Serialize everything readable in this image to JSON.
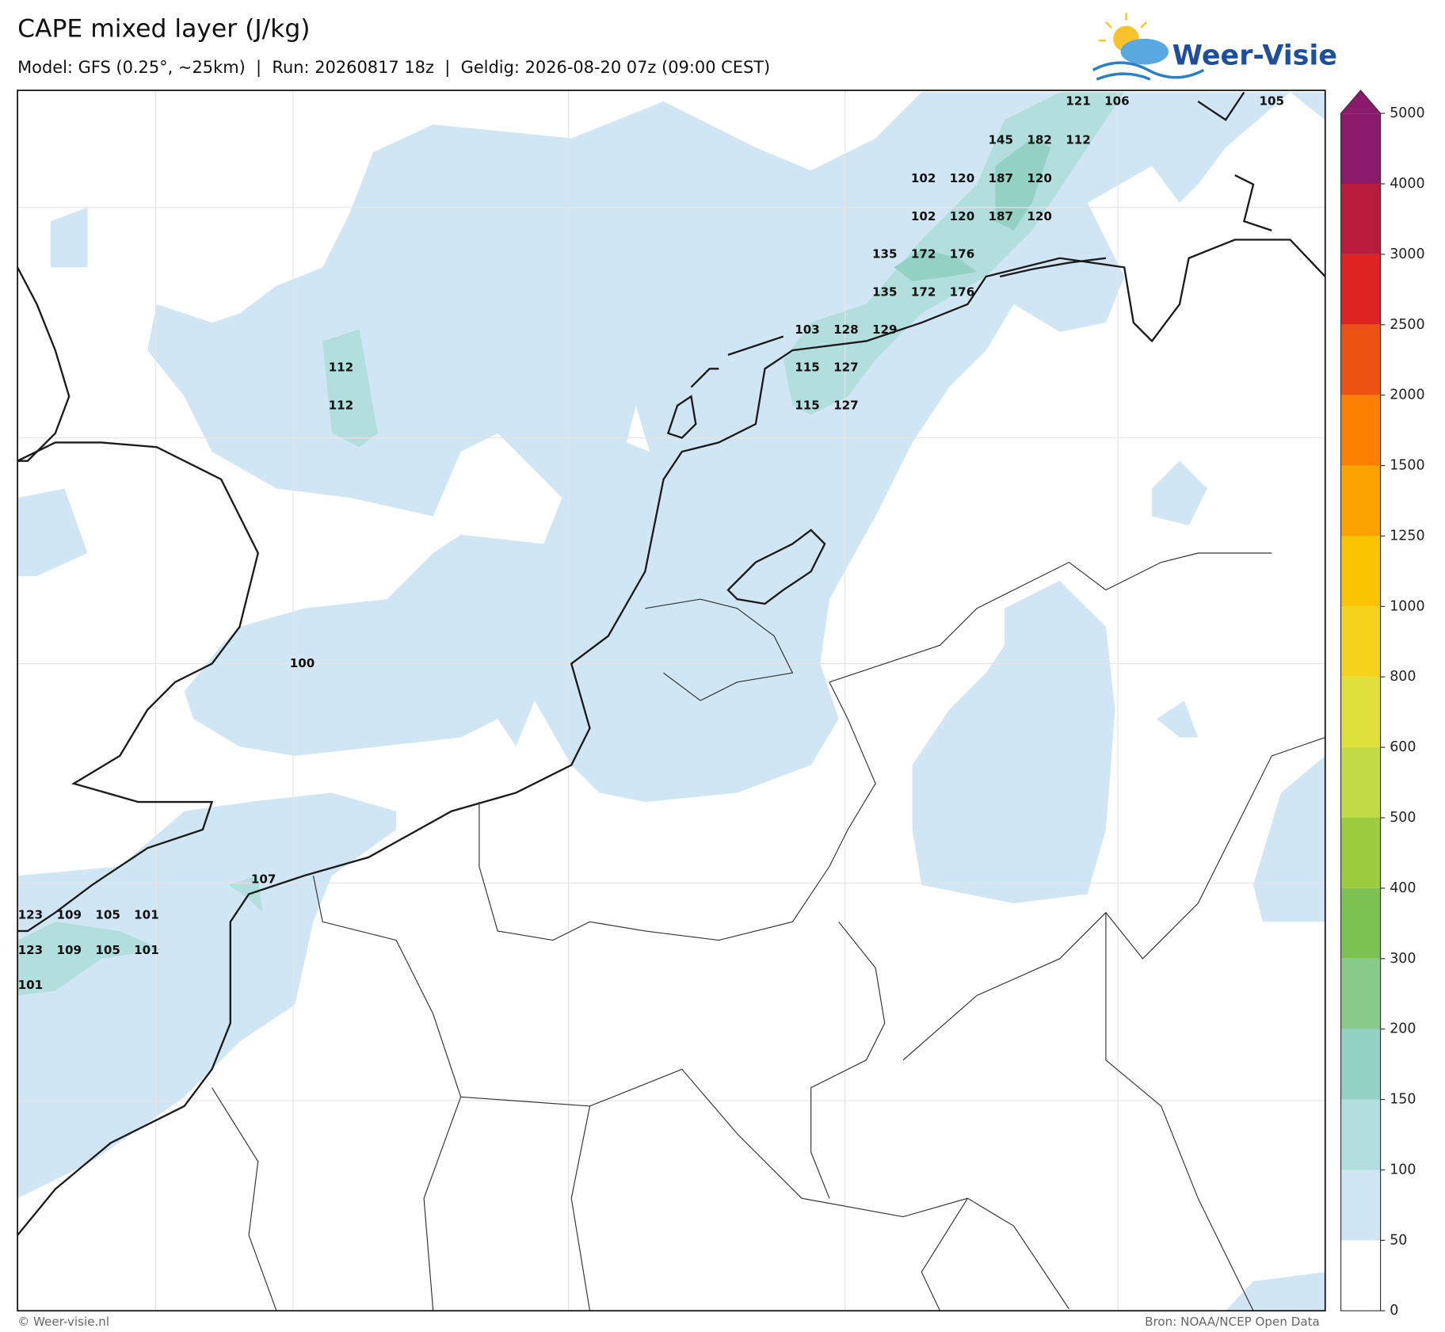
{
  "header": {
    "title": "CAPE mixed layer (J/kg)",
    "subtitle": "Model: GFS (0.25°, ~25km)  |  Run: 20260817 18z  |  Geldig: 2026-08-20 07z (09:00 CEST)"
  },
  "logo": "Weer-Visie",
  "colorbar": {
    "ticks": [
      0,
      50,
      100,
      150,
      200,
      300,
      400,
      500,
      600,
      800,
      1000,
      1250,
      1500,
      2000,
      2500,
      3000,
      4000,
      5000
    ],
    "colors": [
      "#ffffff",
      "#d0e6f5",
      "#b2dfdd",
      "#92d1c3",
      "#87ca8a",
      "#7cc252",
      "#9bcd3f",
      "#c2da46",
      "#dfe03a",
      "#f3d31b",
      "#fbc400",
      "#fba200",
      "#fa8000",
      "#ee5212",
      "#df2222",
      "#b81c3c",
      "#8a1a6c"
    ],
    "extend_color": "#8a1a6c"
  },
  "map": {
    "values": [
      121,
      106,
      105,
      145,
      182,
      112,
      102,
      120,
      187,
      120,
      102,
      120,
      187,
      120,
      135,
      172,
      176,
      135,
      172,
      176,
      103,
      128,
      129,
      112,
      115,
      127,
      112,
      115,
      127,
      100,
      107,
      123,
      109,
      105,
      101,
      123,
      109,
      105,
      101,
      101
    ]
  },
  "footer": {
    "left": "© Weer-visie.nl",
    "right": "Bron: NOAA/NCEP Open Data"
  }
}
